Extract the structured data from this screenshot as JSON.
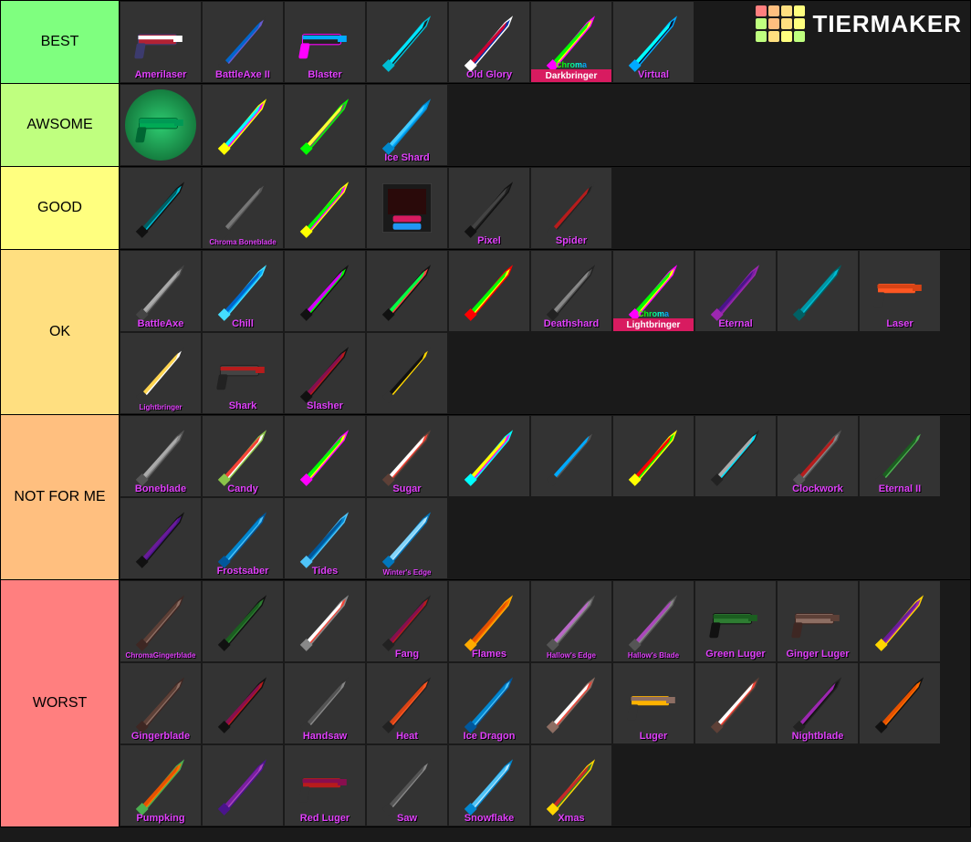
{
  "watermark": {
    "text": "TIERMAKER",
    "grid_colors": [
      "#ff7f7f",
      "#ffbf7f",
      "#ffdf80",
      "#ffff7f",
      "#bfff7f",
      "#ffbf7f",
      "#ffdf80",
      "#ffff7f",
      "#bfff7f",
      "#ffdf80",
      "#ffff7f",
      "#bfff7f"
    ]
  },
  "label_color": "#e040fb",
  "tiers": [
    {
      "name": "BEST",
      "bg": "#7fff7f",
      "items": [
        {
          "label": "Amerilaser",
          "colors": [
            "#b22234",
            "#ffffff",
            "#3c3b6e"
          ]
        },
        {
          "label": "BattleAxe II",
          "colors": [
            "#6a5acd",
            "#0066cc",
            "#333"
          ]
        },
        {
          "label": "Blaster",
          "colors": [
            "#222",
            "#0af",
            "#f0f"
          ]
        },
        {
          "label": "",
          "colors": [
            "#1c1c1c",
            "#00e5ff",
            "#00bcd4"
          ]
        },
        {
          "label": "Old Glory",
          "colors": [
            "#0033aa",
            "#cc0033",
            "#fff"
          ]
        },
        {
          "label": "Darkbringer",
          "colors": [
            "#ff0",
            "#0f0",
            "#f0f"
          ],
          "chroma": true,
          "band": "Darkbringer"
        },
        {
          "label": "Virtual",
          "colors": [
            "#0a0a2a",
            "#00ffff",
            "#00aaff"
          ]
        }
      ]
    },
    {
      "name": "AWSOME",
      "bg": "#bfff7f",
      "items": [
        {
          "label": "",
          "colors": [
            "#0a5",
            "#095",
            "#063"
          ],
          "green_circle": true
        },
        {
          "label": "",
          "colors": [
            "#f0f",
            "#0ff",
            "#ff0"
          ]
        },
        {
          "label": "",
          "colors": [
            "#666",
            "#ff3",
            "#0f0"
          ]
        },
        {
          "label": "Ice Shard",
          "colors": [
            "#0af",
            "#4cf",
            "#08c"
          ]
        }
      ]
    },
    {
      "name": "GOOD",
      "bg": "#ffff7f",
      "items": [
        {
          "label": "",
          "colors": [
            "#00bcd4",
            "#006064",
            "#111"
          ]
        },
        {
          "label": "Chroma Boneblade",
          "colors": [
            "#555",
            "#777",
            "#333"
          ],
          "small_label": true
        },
        {
          "label": "",
          "colors": [
            "#f0f",
            "#0f0",
            "#ff0"
          ]
        },
        {
          "label": "",
          "colors": [
            "#d81b60",
            "#2196f3",
            "#1a1a1a"
          ],
          "crate": true
        },
        {
          "label": "Pixel",
          "colors": [
            "#222",
            "#444",
            "#111"
          ]
        },
        {
          "label": "Spider",
          "colors": [
            "#222",
            "#b71c1c",
            "#333"
          ]
        }
      ]
    },
    {
      "name": "OK",
      "bg": "#ffdf80",
      "items": [
        {
          "label": "BattleAxe",
          "colors": [
            "#888",
            "#aaa",
            "#444"
          ]
        },
        {
          "label": "Chill",
          "colors": [
            "#0af",
            "#06c",
            "#4df"
          ]
        },
        {
          "label": "",
          "colors": [
            "#0f0",
            "#d500f9",
            "#111"
          ]
        },
        {
          "label": "",
          "colors": [
            "#f44",
            "#0f4",
            "#111"
          ]
        },
        {
          "label": "",
          "colors": [
            "#ff0",
            "#0f0",
            "#f00"
          ]
        },
        {
          "label": "Deathshard",
          "colors": [
            "#555",
            "#888",
            "#222"
          ]
        },
        {
          "label": "Lightbringer",
          "colors": [
            "#ff0",
            "#0f0",
            "#f0f"
          ],
          "chroma": true,
          "band": "Lightbringer"
        },
        {
          "label": "Eternal",
          "colors": [
            "#7b1fa2",
            "#4a148c",
            "#9c27b0"
          ]
        },
        {
          "label": "",
          "colors": [
            "#00bcd4",
            "#0097a7",
            "#006064"
          ]
        },
        {
          "label": "Laser",
          "colors": [
            "#ff5722",
            "#d84315",
            "#333"
          ]
        },
        {
          "label": "Lightbringer",
          "colors": [
            "#fff",
            "#ffd54f",
            "#333"
          ],
          "small_label": true
        },
        {
          "label": "Shark",
          "colors": [
            "#444",
            "#b71c1c",
            "#222"
          ]
        },
        {
          "label": "Slasher",
          "colors": [
            "#b71c1c",
            "#880e4f",
            "#111"
          ]
        },
        {
          "label": "",
          "colors": [
            "#ffd600",
            "#111",
            "#333"
          ]
        }
      ]
    },
    {
      "name": "NOT FOR ME",
      "bg": "#ffbf7f",
      "items": [
        {
          "label": "Boneblade",
          "colors": [
            "#888",
            "#aaa",
            "#555"
          ]
        },
        {
          "label": "Candy",
          "colors": [
            "#fff",
            "#f44336",
            "#8bc34a"
          ]
        },
        {
          "label": "",
          "colors": [
            "#ff0",
            "#0f0",
            "#f0f"
          ]
        },
        {
          "label": "Sugar",
          "colors": [
            "#f44336",
            "#fff",
            "#5d4037"
          ]
        },
        {
          "label": "",
          "colors": [
            "#f0f",
            "#ff0",
            "#0ff"
          ]
        },
        {
          "label": "",
          "colors": [
            "#555",
            "#0af",
            "#333"
          ]
        },
        {
          "label": "",
          "colors": [
            "#0f0",
            "#f00",
            "#ff0"
          ]
        },
        {
          "label": "",
          "colors": [
            "#00e5ff",
            "#aaa",
            "#222"
          ]
        },
        {
          "label": "Clockwork",
          "colors": [
            "#888",
            "#b71c1c",
            "#555"
          ]
        },
        {
          "label": "Eternal II",
          "colors": [
            "#4caf50",
            "#1b5e20",
            "#333"
          ]
        },
        {
          "label": "",
          "colors": [
            "#4a148c",
            "#6a1b9a",
            "#111"
          ]
        },
        {
          "label": "Frostsaber",
          "colors": [
            "#4fc3f7",
            "#0288d1",
            "#01579b"
          ]
        },
        {
          "label": "Tides",
          "colors": [
            "#0288d1",
            "#01579b",
            "#4fc3f7"
          ]
        },
        {
          "label": "Winter's Edge",
          "colors": [
            "#b3e5fc",
            "#81d4fa",
            "#0277bd"
          ],
          "small_label": true
        }
      ]
    },
    {
      "name": "WORST",
      "bg": "#ff7f7f",
      "items": [
        {
          "label": "ChromaGingerblade",
          "colors": [
            "#8d6e63",
            "#5d4037",
            "#3e2723"
          ],
          "small_label": true
        },
        {
          "label": "",
          "colors": [
            "#2e7d32",
            "#1b5e20",
            "#111"
          ]
        },
        {
          "label": "",
          "colors": [
            "#f44336",
            "#fff",
            "#888"
          ]
        },
        {
          "label": "Fang",
          "colors": [
            "#b71c1c",
            "#880e4f",
            "#222"
          ]
        },
        {
          "label": "Flames",
          "colors": [
            "#ff6f00",
            "#e65100",
            "#ffab00"
          ]
        },
        {
          "label": "Hallow's Edge",
          "colors": [
            "#888",
            "#ba68c8",
            "#555"
          ],
          "small_label": true
        },
        {
          "label": "Hallow's Blade",
          "colors": [
            "#888",
            "#ab47bc",
            "#555"
          ],
          "small_label": true
        },
        {
          "label": "Green Luger",
          "colors": [
            "#2e7d32",
            "#1b5e20",
            "#111"
          ]
        },
        {
          "label": "Ginger Luger",
          "colors": [
            "#8d6e63",
            "#5d4037",
            "#3e2723"
          ]
        },
        {
          "label": "",
          "colors": [
            "#9c27b0",
            "#6a1b9a",
            "#ffd600"
          ]
        },
        {
          "label": "Gingerblade",
          "colors": [
            "#8d6e63",
            "#5d4037",
            "#3e2723"
          ]
        },
        {
          "label": "",
          "colors": [
            "#b71c1c",
            "#880e4f",
            "#111"
          ]
        },
        {
          "label": "Handsaw",
          "colors": [
            "#888",
            "#555",
            "#333"
          ]
        },
        {
          "label": "Heat",
          "colors": [
            "#ff5722",
            "#d84315",
            "#222"
          ]
        },
        {
          "label": "Ice Dragon",
          "colors": [
            "#4fc3f7",
            "#0288d1",
            "#01579b"
          ]
        },
        {
          "label": "",
          "colors": [
            "#f44336",
            "#fff",
            "#8d6e63"
          ]
        },
        {
          "label": "Luger",
          "colors": [
            "#ffb300",
            "#8d6e63",
            "#333"
          ]
        },
        {
          "label": "",
          "colors": [
            "#f44336",
            "#fff",
            "#5d4037"
          ]
        },
        {
          "label": "Nightblade",
          "colors": [
            "#111",
            "#9c27b0",
            "#222"
          ]
        },
        {
          "label": "",
          "colors": [
            "#ff6f00",
            "#e65100",
            "#111"
          ]
        },
        {
          "label": "Pumpking",
          "colors": [
            "#ff6f00",
            "#e65100",
            "#4caf50"
          ]
        },
        {
          "label": "",
          "colors": [
            "#ab47bc",
            "#7b1fa2",
            "#4a148c"
          ]
        },
        {
          "label": "Red Luger",
          "colors": [
            "#b71c1c",
            "#880e4f",
            "#333"
          ]
        },
        {
          "label": "Saw",
          "colors": [
            "#888",
            "#555",
            "#333"
          ]
        },
        {
          "label": "Snowflake",
          "colors": [
            "#b3e5fc",
            "#4fc3f7",
            "#0288d1"
          ]
        },
        {
          "label": "Xmas",
          "colors": [
            "#2e7d32",
            "#c62828",
            "#ffd600"
          ]
        }
      ]
    }
  ]
}
